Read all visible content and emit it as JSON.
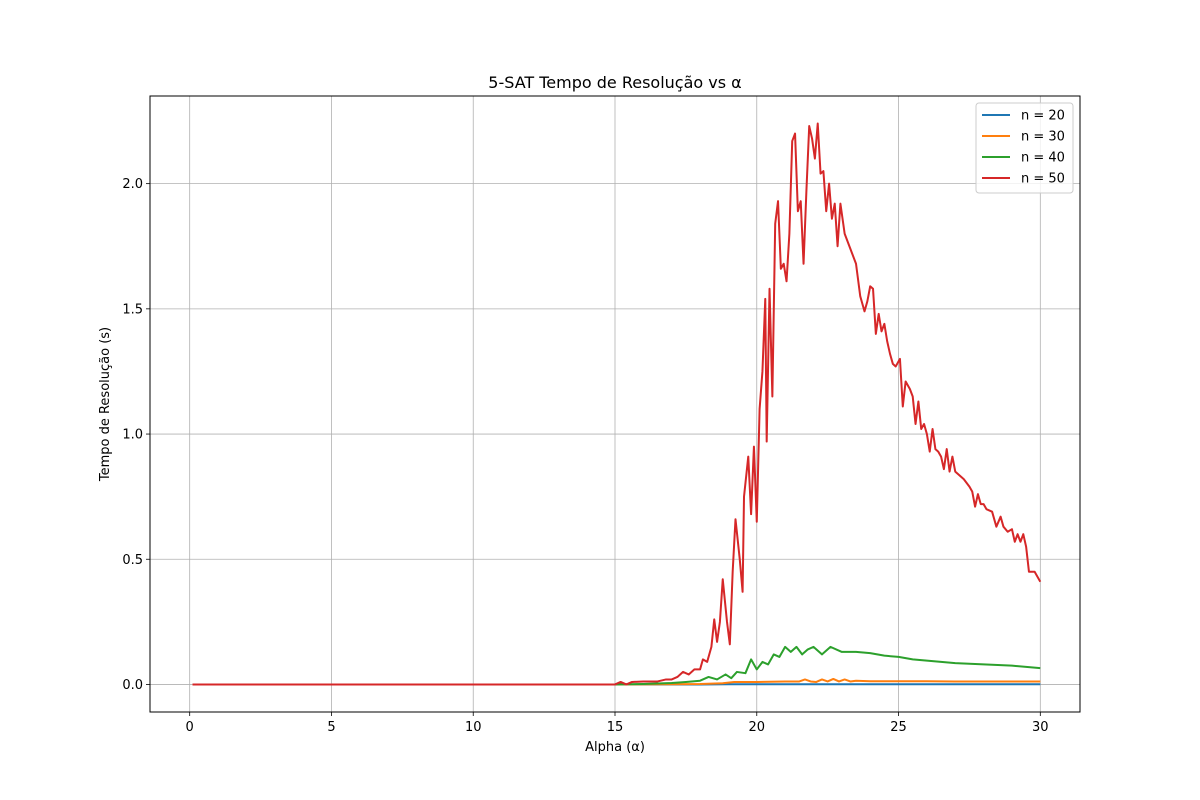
{
  "chart_data": {
    "type": "line",
    "title": "5-SAT Tempo de Resolução vs α",
    "xlabel": "Alpha (α)",
    "ylabel": "Tempo de Resolução (s)",
    "xlim": [
      -1.4,
      31.4
    ],
    "ylim": [
      -0.11,
      2.35
    ],
    "xticks": [
      0,
      5,
      10,
      15,
      20,
      25,
      30
    ],
    "xtick_labels": [
      "0",
      "5",
      "10",
      "15",
      "20",
      "25",
      "30"
    ],
    "yticks": [
      0.0,
      0.5,
      1.0,
      1.5,
      2.0
    ],
    "ytick_labels": [
      "0.0",
      "0.5",
      "1.0",
      "1.5",
      "2.0"
    ],
    "grid": true,
    "legend_position": "upper-right",
    "series": [
      {
        "name": "n = 20",
        "color": "#1f77b4",
        "points": [
          [
            0.1,
            0.0
          ],
          [
            5,
            0.0
          ],
          [
            10,
            0.0
          ],
          [
            15,
            0.0
          ],
          [
            18,
            0.0
          ],
          [
            19,
            0.001
          ],
          [
            20,
            0.001
          ],
          [
            22,
            0.001
          ],
          [
            25,
            0.001
          ],
          [
            28,
            0.001
          ],
          [
            30,
            0.001
          ]
        ]
      },
      {
        "name": "n = 30",
        "color": "#ff7f0e",
        "points": [
          [
            0.1,
            0.0
          ],
          [
            5,
            0.0
          ],
          [
            10,
            0.0
          ],
          [
            15,
            0.0
          ],
          [
            17,
            0.001
          ],
          [
            18,
            0.002
          ],
          [
            18.8,
            0.005
          ],
          [
            19.2,
            0.01
          ],
          [
            20,
            0.01
          ],
          [
            21,
            0.012
          ],
          [
            21.5,
            0.012
          ],
          [
            21.7,
            0.02
          ],
          [
            21.9,
            0.012
          ],
          [
            22.1,
            0.01
          ],
          [
            22.3,
            0.02
          ],
          [
            22.5,
            0.012
          ],
          [
            22.7,
            0.022
          ],
          [
            22.9,
            0.012
          ],
          [
            23.1,
            0.02
          ],
          [
            23.3,
            0.012
          ],
          [
            23.5,
            0.015
          ],
          [
            24,
            0.013
          ],
          [
            25,
            0.013
          ],
          [
            26,
            0.013
          ],
          [
            27,
            0.012
          ],
          [
            28,
            0.012
          ],
          [
            29,
            0.012
          ],
          [
            30,
            0.012
          ]
        ]
      },
      {
        "name": "n = 40",
        "color": "#2ca02c",
        "points": [
          [
            0.1,
            0.0
          ],
          [
            5,
            0.0
          ],
          [
            10,
            0.0
          ],
          [
            15,
            0.0
          ],
          [
            16,
            0.002
          ],
          [
            16.5,
            0.004
          ],
          [
            17,
            0.006
          ],
          [
            17.5,
            0.01
          ],
          [
            18,
            0.015
          ],
          [
            18.3,
            0.03
          ],
          [
            18.6,
            0.02
          ],
          [
            18.9,
            0.04
          ],
          [
            19.1,
            0.025
          ],
          [
            19.3,
            0.05
          ],
          [
            19.6,
            0.045
          ],
          [
            19.8,
            0.1
          ],
          [
            20,
            0.06
          ],
          [
            20.2,
            0.09
          ],
          [
            20.4,
            0.08
          ],
          [
            20.6,
            0.12
          ],
          [
            20.8,
            0.11
          ],
          [
            21,
            0.15
          ],
          [
            21.2,
            0.13
          ],
          [
            21.4,
            0.15
          ],
          [
            21.6,
            0.12
          ],
          [
            21.8,
            0.14
          ],
          [
            22,
            0.15
          ],
          [
            22.3,
            0.12
          ],
          [
            22.6,
            0.15
          ],
          [
            23,
            0.13
          ],
          [
            23.5,
            0.13
          ],
          [
            24,
            0.125
          ],
          [
            24.5,
            0.115
          ],
          [
            25,
            0.11
          ],
          [
            25.5,
            0.1
          ],
          [
            26,
            0.095
          ],
          [
            26.5,
            0.09
          ],
          [
            27,
            0.085
          ],
          [
            28,
            0.08
          ],
          [
            29,
            0.075
          ],
          [
            30,
            0.065
          ]
        ]
      },
      {
        "name": "n = 50",
        "color": "#d62728",
        "points": [
          [
            0.1,
            0.0
          ],
          [
            5,
            0.0
          ],
          [
            10,
            0.0
          ],
          [
            15,
            0.0
          ],
          [
            15.2,
            0.01
          ],
          [
            15.4,
            0.0
          ],
          [
            15.6,
            0.01
          ],
          [
            16,
            0.012
          ],
          [
            16.5,
            0.012
          ],
          [
            16.8,
            0.02
          ],
          [
            17.0,
            0.02
          ],
          [
            17.2,
            0.03
          ],
          [
            17.4,
            0.05
          ],
          [
            17.6,
            0.04
          ],
          [
            17.8,
            0.06
          ],
          [
            18.0,
            0.06
          ],
          [
            18.1,
            0.1
          ],
          [
            18.25,
            0.09
          ],
          [
            18.4,
            0.15
          ],
          [
            18.5,
            0.26
          ],
          [
            18.6,
            0.17
          ],
          [
            18.7,
            0.25
          ],
          [
            18.8,
            0.42
          ],
          [
            18.95,
            0.25
          ],
          [
            19.05,
            0.16
          ],
          [
            19.15,
            0.45
          ],
          [
            19.25,
            0.66
          ],
          [
            19.4,
            0.5
          ],
          [
            19.5,
            0.37
          ],
          [
            19.55,
            0.75
          ],
          [
            19.7,
            0.91
          ],
          [
            19.8,
            0.68
          ],
          [
            19.9,
            0.95
          ],
          [
            20.0,
            0.65
          ],
          [
            20.1,
            1.1
          ],
          [
            20.2,
            1.25
          ],
          [
            20.3,
            1.54
          ],
          [
            20.35,
            0.97
          ],
          [
            20.45,
            1.58
          ],
          [
            20.55,
            1.15
          ],
          [
            20.65,
            1.84
          ],
          [
            20.75,
            1.93
          ],
          [
            20.85,
            1.66
          ],
          [
            20.95,
            1.68
          ],
          [
            21.05,
            1.61
          ],
          [
            21.15,
            1.8
          ],
          [
            21.25,
            2.17
          ],
          [
            21.35,
            2.2
          ],
          [
            21.45,
            1.89
          ],
          [
            21.55,
            1.93
          ],
          [
            21.65,
            1.68
          ],
          [
            21.75,
            1.97
          ],
          [
            21.85,
            2.23
          ],
          [
            21.95,
            2.18
          ],
          [
            22.05,
            2.1
          ],
          [
            22.15,
            2.24
          ],
          [
            22.25,
            2.04
          ],
          [
            22.35,
            2.05
          ],
          [
            22.45,
            1.89
          ],
          [
            22.55,
            2.0
          ],
          [
            22.65,
            1.86
          ],
          [
            22.75,
            1.92
          ],
          [
            22.85,
            1.75
          ],
          [
            22.95,
            1.92
          ],
          [
            23.1,
            1.8
          ],
          [
            23.3,
            1.74
          ],
          [
            23.5,
            1.68
          ],
          [
            23.65,
            1.55
          ],
          [
            23.8,
            1.49
          ],
          [
            23.9,
            1.53
          ],
          [
            24.0,
            1.59
          ],
          [
            24.1,
            1.58
          ],
          [
            24.2,
            1.4
          ],
          [
            24.3,
            1.48
          ],
          [
            24.4,
            1.41
          ],
          [
            24.5,
            1.44
          ],
          [
            24.6,
            1.37
          ],
          [
            24.7,
            1.32
          ],
          [
            24.8,
            1.28
          ],
          [
            24.9,
            1.27
          ],
          [
            25.05,
            1.3
          ],
          [
            25.15,
            1.11
          ],
          [
            25.25,
            1.21
          ],
          [
            25.4,
            1.18
          ],
          [
            25.5,
            1.15
          ],
          [
            25.6,
            1.04
          ],
          [
            25.7,
            1.13
          ],
          [
            25.8,
            1.02
          ],
          [
            25.9,
            1.04
          ],
          [
            26.0,
            1.0
          ],
          [
            26.1,
            0.93
          ],
          [
            26.2,
            1.02
          ],
          [
            26.3,
            0.94
          ],
          [
            26.4,
            0.93
          ],
          [
            26.5,
            0.91
          ],
          [
            26.6,
            0.86
          ],
          [
            26.7,
            0.94
          ],
          [
            26.8,
            0.85
          ],
          [
            26.9,
            0.91
          ],
          [
            27.0,
            0.85
          ],
          [
            27.1,
            0.84
          ],
          [
            27.3,
            0.82
          ],
          [
            27.5,
            0.79
          ],
          [
            27.6,
            0.77
          ],
          [
            27.7,
            0.71
          ],
          [
            27.8,
            0.76
          ],
          [
            27.9,
            0.72
          ],
          [
            28.0,
            0.72
          ],
          [
            28.1,
            0.7
          ],
          [
            28.3,
            0.69
          ],
          [
            28.45,
            0.63
          ],
          [
            28.6,
            0.67
          ],
          [
            28.7,
            0.63
          ],
          [
            28.85,
            0.61
          ],
          [
            29.0,
            0.62
          ],
          [
            29.1,
            0.57
          ],
          [
            29.2,
            0.6
          ],
          [
            29.3,
            0.57
          ],
          [
            29.4,
            0.6
          ],
          [
            29.5,
            0.55
          ],
          [
            29.6,
            0.45
          ],
          [
            29.8,
            0.45
          ],
          [
            30.0,
            0.41
          ]
        ]
      }
    ]
  }
}
